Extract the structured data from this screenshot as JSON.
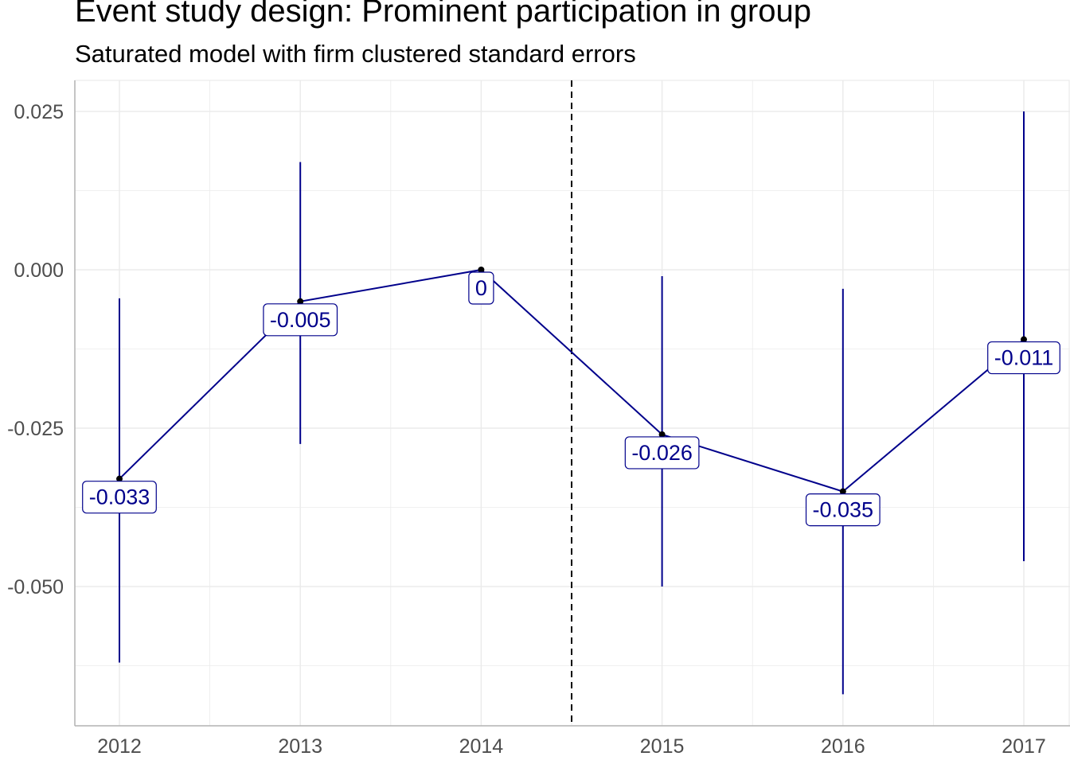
{
  "chart_data": {
    "type": "line",
    "title": "Event study design: Prominent participation in group",
    "subtitle": "Saturated model with firm clustered standard errors",
    "xlabel": "",
    "ylabel": "",
    "x": [
      "2012",
      "2013",
      "2014",
      "2015",
      "2016",
      "2017"
    ],
    "series": [
      {
        "values": [
          -0.033,
          -0.005,
          0,
          -0.026,
          -0.035,
          -0.011
        ],
        "labels": [
          "-0.033",
          "-0.005",
          "0",
          "-0.026",
          "-0.035",
          "-0.011"
        ],
        "ci_lower": [
          -0.062,
          -0.0275,
          0,
          -0.05,
          -0.067,
          -0.046
        ],
        "ci_upper": [
          -0.0045,
          0.017,
          0,
          -0.001,
          -0.003,
          0.025
        ]
      }
    ],
    "y_ticks": [
      "0.025",
      "0.000",
      "-0.025",
      "-0.050"
    ],
    "y_tick_values": [
      0.025,
      0.0,
      -0.025,
      -0.05
    ],
    "ylim": [
      -0.072,
      0.03
    ],
    "reference_line_x": 2014.5,
    "grid": true,
    "legend": "none",
    "colors": {
      "series": "#00008b",
      "grid": "#ebebeb",
      "reference": "#000000",
      "tick_text": "#4d4d4d"
    }
  }
}
